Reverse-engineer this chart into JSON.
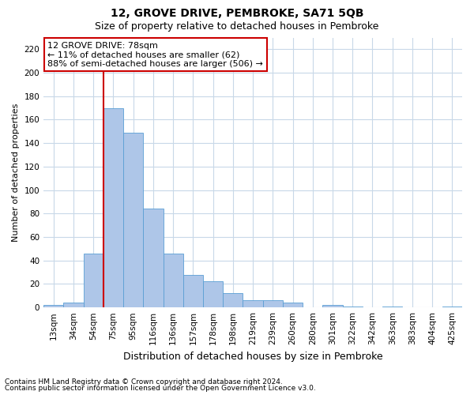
{
  "title": "12, GROVE DRIVE, PEMBROKE, SA71 5QB",
  "subtitle": "Size of property relative to detached houses in Pembroke",
  "xlabel": "Distribution of detached houses by size in Pembroke",
  "ylabel": "Number of detached properties",
  "footnote1": "Contains HM Land Registry data © Crown copyright and database right 2024.",
  "footnote2": "Contains public sector information licensed under the Open Government Licence v3.0.",
  "annotation_line1": "12 GROVE DRIVE: 78sqm",
  "annotation_line2": "← 11% of detached houses are smaller (62)",
  "annotation_line3": "88% of semi-detached houses are larger (506) →",
  "bar_categories": [
    "13sqm",
    "34sqm",
    "54sqm",
    "75sqm",
    "95sqm",
    "116sqm",
    "136sqm",
    "157sqm",
    "178sqm",
    "198sqm",
    "219sqm",
    "239sqm",
    "260sqm",
    "280sqm",
    "301sqm",
    "322sqm",
    "342sqm",
    "363sqm",
    "383sqm",
    "404sqm",
    "425sqm"
  ],
  "bar_values": [
    2,
    4,
    46,
    170,
    149,
    84,
    46,
    28,
    22,
    12,
    6,
    6,
    4,
    0,
    2,
    1,
    0,
    1,
    0,
    0,
    1
  ],
  "bar_color": "#aec6e8",
  "bar_edge_color": "#5a9fd4",
  "vline_color": "#cc0000",
  "vline_bar_index": 3,
  "bg_color": "#ffffff",
  "grid_color": "#c8d8e8",
  "annotation_box_color": "#cc0000",
  "ylim": [
    0,
    230
  ],
  "yticks": [
    0,
    20,
    40,
    60,
    80,
    100,
    120,
    140,
    160,
    180,
    200,
    220
  ],
  "title_fontsize": 10,
  "subtitle_fontsize": 9,
  "ylabel_fontsize": 8,
  "xlabel_fontsize": 9,
  "tick_fontsize": 7.5,
  "annotation_fontsize": 8
}
